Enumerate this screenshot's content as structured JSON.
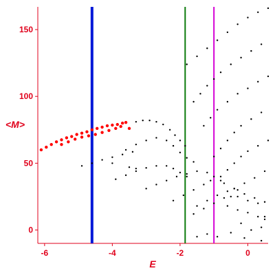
{
  "chart_data": {
    "type": "scatter",
    "xlabel": "E",
    "ylabel": "<M>",
    "xlim": [
      -6.2,
      0.6
    ],
    "ylim": [
      -10,
      167
    ],
    "x_ticks": [
      "-6",
      "-4",
      "-2",
      "0"
    ],
    "y_ticks": [
      "0",
      "50",
      "100",
      "150"
    ],
    "axis_color": "#e0001b",
    "grid": false,
    "series": [
      {
        "color": "#ff0000",
        "points": [
          [
            -6.1,
            60
          ],
          [
            -5.95,
            62
          ],
          [
            -5.8,
            64
          ],
          [
            -5.65,
            66
          ],
          [
            -5.5,
            67.5
          ],
          [
            -5.35,
            69
          ],
          [
            -5.2,
            70
          ],
          [
            -5.05,
            71.5
          ],
          [
            -4.9,
            72.5
          ],
          [
            -4.75,
            73.5
          ],
          [
            -4.6,
            75
          ],
          [
            -4.45,
            76
          ],
          [
            -4.3,
            77
          ],
          [
            -4.15,
            78
          ],
          [
            -4.0,
            78.5
          ],
          [
            -3.85,
            79
          ],
          [
            -3.7,
            80
          ],
          [
            -3.6,
            80.5
          ],
          [
            -3.5,
            76
          ],
          [
            -5.5,
            64
          ],
          [
            -5.3,
            66
          ],
          [
            -5.1,
            68
          ],
          [
            -4.9,
            69.5
          ],
          [
            -4.7,
            70.5
          ],
          [
            -4.5,
            71.5
          ],
          [
            -4.3,
            73
          ],
          [
            -4.1,
            74.5
          ],
          [
            -3.9,
            76
          ],
          [
            -3.75,
            77.5
          ]
        ]
      },
      {
        "color": "#000000",
        "points": [
          [
            -3.3,
            81
          ],
          [
            -3.1,
            82
          ],
          [
            -2.9,
            82
          ],
          [
            -2.7,
            81
          ],
          [
            -2.5,
            79
          ],
          [
            -2.3,
            75
          ],
          [
            -2.15,
            71
          ],
          [
            -2.0,
            67
          ],
          [
            -1.85,
            63
          ],
          [
            -3.6,
            60
          ],
          [
            -3.3,
            64
          ],
          [
            -3.0,
            67
          ],
          [
            -2.7,
            69
          ],
          [
            -2.4,
            67
          ],
          [
            -2.2,
            63
          ],
          [
            -2.0,
            58
          ],
          [
            -1.8,
            54
          ],
          [
            -1.6,
            51
          ],
          [
            -4.9,
            48
          ],
          [
            -4.6,
            50
          ],
          [
            -4.3,
            52.5
          ],
          [
            -4.0,
            54.5
          ],
          [
            -3.7,
            56.5
          ],
          [
            -3.4,
            58.5
          ],
          [
            -4.0,
            50
          ],
          [
            -3.5,
            47
          ],
          [
            -3.3,
            46
          ],
          [
            -3.9,
            38
          ],
          [
            -3.6,
            41
          ],
          [
            -3.3,
            44
          ],
          [
            -3.0,
            46.5
          ],
          [
            -2.7,
            48
          ],
          [
            -2.4,
            48
          ],
          [
            -2.2,
            46
          ],
          [
            -2.0,
            43
          ],
          [
            -1.8,
            40
          ],
          [
            -3.0,
            31
          ],
          [
            -2.7,
            34
          ],
          [
            -2.4,
            37
          ],
          [
            -2.1,
            40
          ],
          [
            -1.8,
            42
          ],
          [
            -1.5,
            44
          ],
          [
            -1.2,
            43
          ],
          [
            -1.0,
            40
          ],
          [
            -0.8,
            37
          ],
          [
            -2.2,
            22
          ],
          [
            -1.9,
            26
          ],
          [
            -1.6,
            30
          ],
          [
            -1.3,
            34
          ],
          [
            -1.1,
            37
          ],
          [
            -1.5,
            18
          ],
          [
            -1.2,
            22
          ],
          [
            -0.9,
            26
          ],
          [
            -0.6,
            29
          ],
          [
            -0.4,
            31
          ],
          [
            -1.6,
            12
          ],
          [
            -1.3,
            16
          ],
          [
            -1.0,
            20
          ],
          [
            -0.7,
            24
          ],
          [
            -0.3,
            25
          ],
          [
            0.0,
            22
          ],
          [
            0.3,
            20
          ],
          [
            -1.8,
            124
          ],
          [
            -1.5,
            130
          ],
          [
            -1.2,
            136
          ],
          [
            -0.9,
            142
          ],
          [
            -0.6,
            148
          ],
          [
            -0.3,
            154
          ],
          [
            0.0,
            159
          ],
          [
            0.3,
            163
          ],
          [
            0.6,
            166
          ],
          [
            -1.6,
            96
          ],
          [
            -1.4,
            102
          ],
          [
            -1.2,
            108
          ],
          [
            -1.0,
            113
          ],
          [
            -0.8,
            118
          ],
          [
            -0.5,
            124
          ],
          [
            -0.2,
            129
          ],
          [
            0.1,
            134
          ],
          [
            0.4,
            139
          ],
          [
            -1.3,
            78
          ],
          [
            -1.1,
            84
          ],
          [
            -0.9,
            90
          ],
          [
            -0.6,
            96
          ],
          [
            -0.3,
            102
          ],
          [
            0.0,
            106
          ],
          [
            0.3,
            111
          ],
          [
            0.6,
            115
          ],
          [
            -1.0,
            55
          ],
          [
            -0.8,
            61
          ],
          [
            -0.6,
            67
          ],
          [
            -0.4,
            73
          ],
          [
            -0.2,
            78
          ],
          [
            0.1,
            83
          ],
          [
            0.4,
            88
          ],
          [
            -0.8,
            40
          ],
          [
            -0.6,
            45
          ],
          [
            -0.4,
            50
          ],
          [
            -0.2,
            55
          ],
          [
            0.0,
            59
          ],
          [
            0.3,
            63
          ],
          [
            0.6,
            67
          ],
          [
            -0.5,
            25
          ],
          [
            -0.3,
            30
          ],
          [
            -0.1,
            35
          ],
          [
            0.2,
            39
          ],
          [
            0.5,
            44
          ],
          [
            -0.7,
            35
          ],
          [
            -0.4,
            31
          ],
          [
            -0.1,
            27
          ],
          [
            0.2,
            24
          ],
          [
            0.5,
            21
          ],
          [
            -0.6,
            18
          ],
          [
            -0.3,
            15
          ],
          [
            0.0,
            13
          ],
          [
            0.3,
            10
          ],
          [
            0.5,
            8
          ],
          [
            -0.2,
            5
          ],
          [
            0.1,
            0
          ],
          [
            0.4,
            2
          ],
          [
            0.5,
            10
          ],
          [
            -1.5,
            -5
          ],
          [
            -1.2,
            -3
          ],
          [
            -0.9,
            -5
          ],
          [
            -0.5,
            -2
          ],
          [
            -0.1,
            -6
          ],
          [
            0.4,
            -8
          ]
        ]
      }
    ],
    "vertical_lines": [
      {
        "x": -4.6,
        "color": "#0018d8"
      },
      {
        "x": -1.85,
        "color": "#0a7a0a"
      },
      {
        "x": -1.0,
        "color": "#d400d4"
      }
    ]
  }
}
